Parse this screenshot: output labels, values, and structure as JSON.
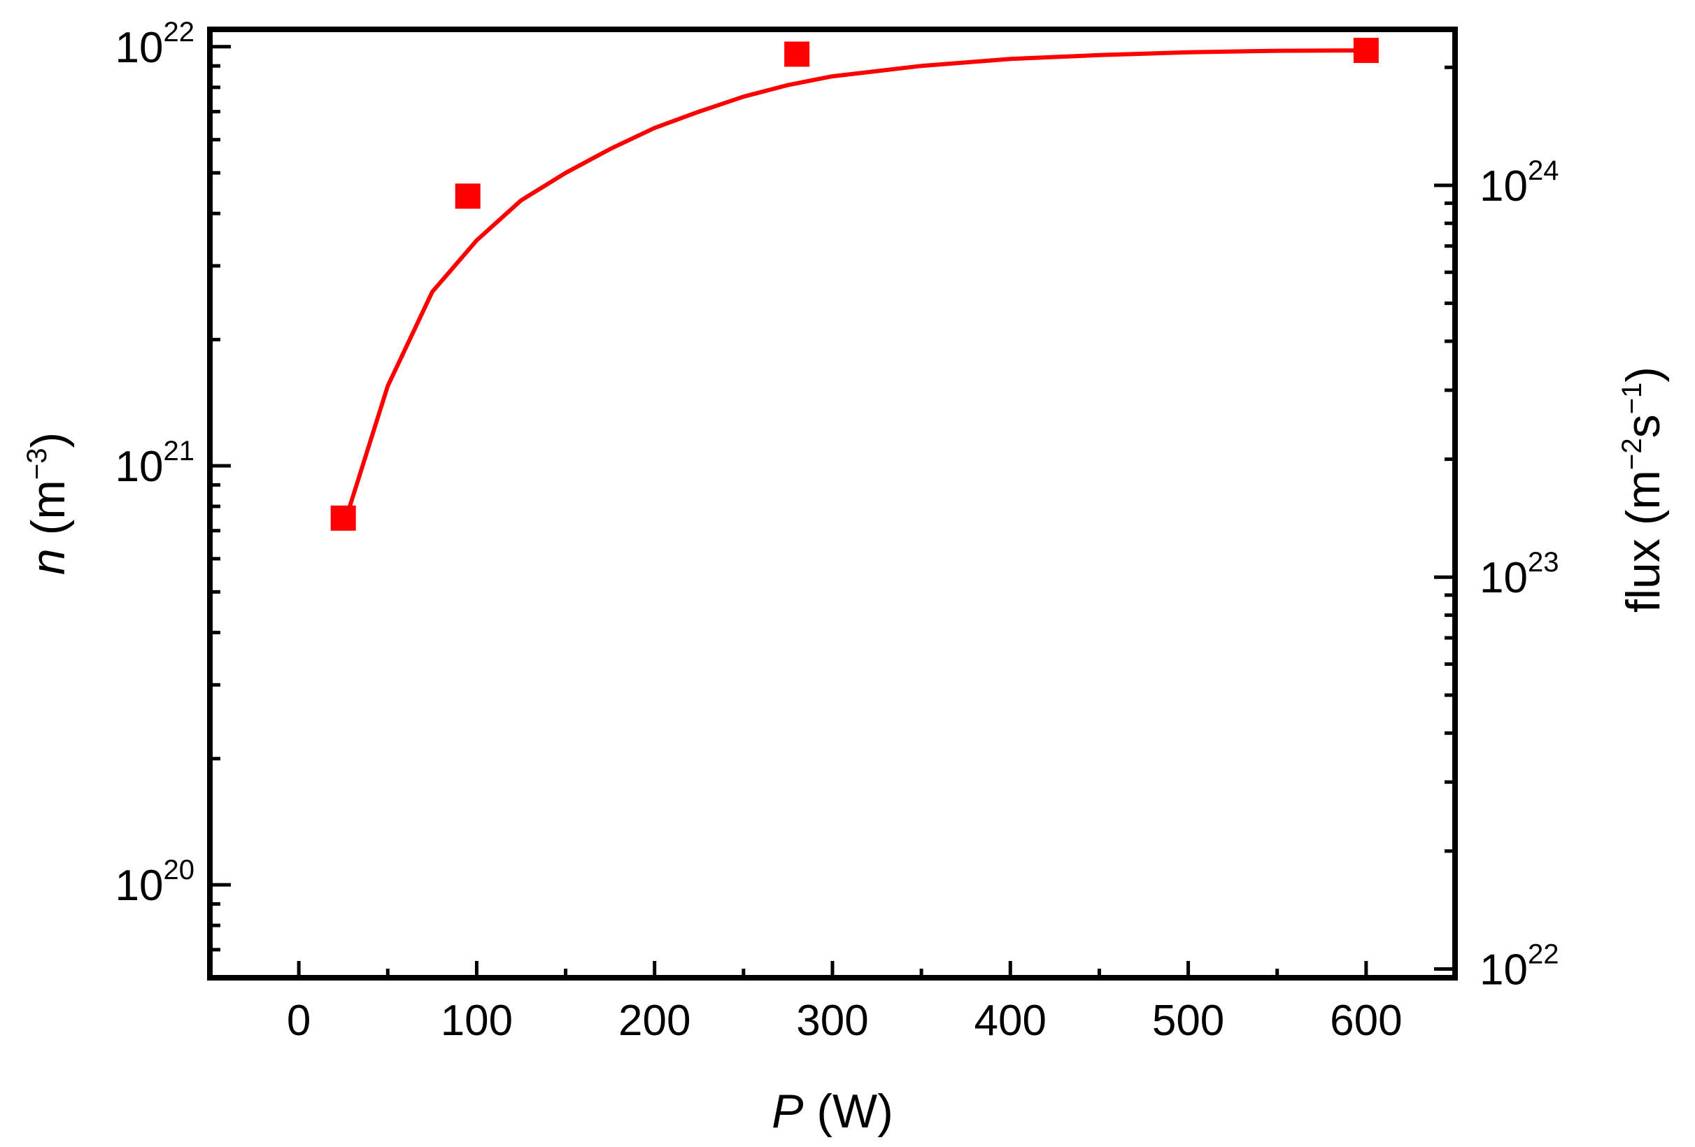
{
  "chart_data": {
    "type": "scatter",
    "x_axis": {
      "title_italic": "P",
      "title_unit": " (W)",
      "range": [
        -50,
        650
      ],
      "major_ticks": [
        0,
        100,
        200,
        300,
        400,
        500,
        600
      ],
      "tick_labels": [
        "0",
        "100",
        "200",
        "300",
        "400",
        "500",
        "600"
      ],
      "minor_step": 50
    },
    "y_axis_left": {
      "title_italic": "n",
      "title_unit_open": " (m",
      "title_unit_exp": "−3",
      "title_unit_close": ")",
      "scale": "log",
      "range": [
        6e+19,
        1.1e+22
      ],
      "major_ticks": [
        1e+20,
        1e+21,
        1e+22
      ],
      "tick_label_base": "10",
      "tick_label_exponents": [
        "20",
        "21",
        "22"
      ]
    },
    "y_axis_right": {
      "title_text": "flux (m",
      "title_exp1": "−2",
      "title_mid": "s",
      "title_exp2": "−1",
      "title_close": ")",
      "scale": "log",
      "range": [
        9.5e+21,
        2.5e+24
      ],
      "major_ticks": [
        1e+22,
        1e+23,
        1e+24
      ],
      "tick_label_base": "10",
      "tick_label_exponents": [
        "22",
        "23",
        "24"
      ]
    },
    "series": [
      {
        "type": "scatter",
        "marker": "square",
        "color": "#ff0000",
        "points": [
          {
            "x": 25,
            "y": 7.5e+20
          },
          {
            "x": 95,
            "y": 4.4e+21
          },
          {
            "x": 280,
            "y": 9.6e+21
          },
          {
            "x": 600,
            "y": 9.8e+21
          }
        ]
      },
      {
        "type": "line",
        "color": "#ff0000",
        "points": [
          {
            "x": 27,
            "y": 7.6e+20
          },
          {
            "x": 50,
            "y": 1.55e+21
          },
          {
            "x": 75,
            "y": 2.6e+21
          },
          {
            "x": 100,
            "y": 3.45e+21
          },
          {
            "x": 125,
            "y": 4.3e+21
          },
          {
            "x": 150,
            "y": 5e+21
          },
          {
            "x": 175,
            "y": 5.7e+21
          },
          {
            "x": 200,
            "y": 6.4e+21
          },
          {
            "x": 225,
            "y": 7e+21
          },
          {
            "x": 250,
            "y": 7.6e+21
          },
          {
            "x": 275,
            "y": 8.1e+21
          },
          {
            "x": 300,
            "y": 8.5e+21
          },
          {
            "x": 350,
            "y": 9e+21
          },
          {
            "x": 400,
            "y": 9.35e+21
          },
          {
            "x": 450,
            "y": 9.55e+21
          },
          {
            "x": 500,
            "y": 9.7e+21
          },
          {
            "x": 550,
            "y": 9.78e+21
          },
          {
            "x": 600,
            "y": 9.8e+21
          }
        ]
      }
    ],
    "legend": "none",
    "grid": false
  }
}
